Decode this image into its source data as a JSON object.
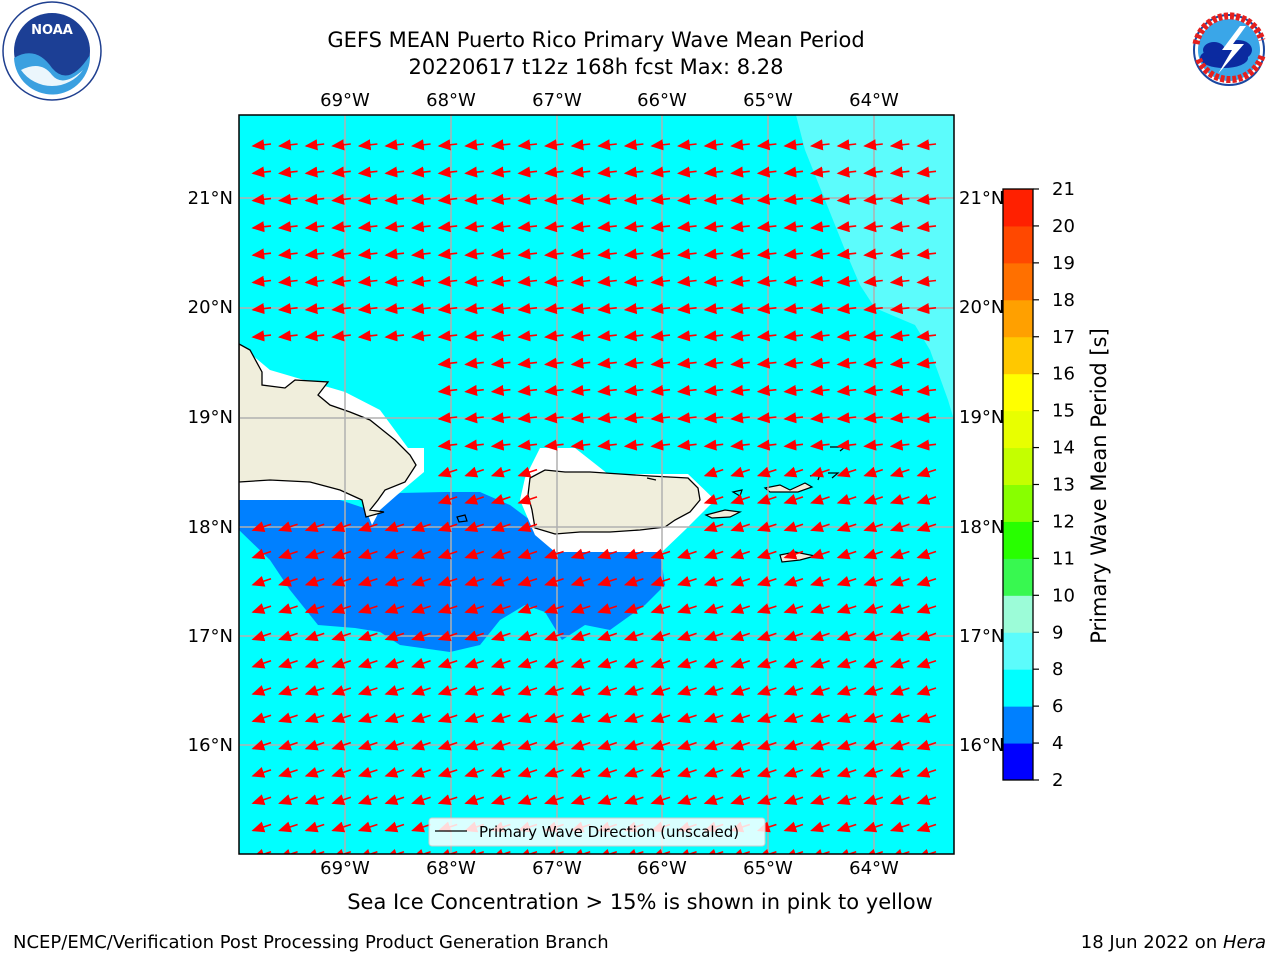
{
  "header": {
    "title_line1": "GEFS MEAN Puerto Rico Primary Wave Mean Period",
    "title_line2": "20220617 t12z 168h fcst   Max: 8.28"
  },
  "logos": {
    "left": {
      "text": "NOAA",
      "ring_text": "NATIONAL OCEANIC AND ATMOSPHERIC ADMINISTRATION · U.S. DEPARTMENT OF COMMERCE"
    },
    "right": {
      "ring_text": "NATIONAL WEATHER SERVICE"
    }
  },
  "map": {
    "lon_labels": [
      "69°W",
      "68°W",
      "67°W",
      "66°W",
      "65°W",
      "64°W"
    ],
    "lat_labels": [
      "21°N",
      "20°N",
      "19°N",
      "18°N",
      "17°N",
      "16°N"
    ],
    "legend_label": "Primary Wave Direction (unscaled)",
    "colors": {
      "ocean": "#00ffff",
      "band_low": "#0080ff",
      "band_high": "#5cfcfc",
      "land": "#f0eedc",
      "arrow": "#ff0000",
      "grid": "#b0b0b0"
    }
  },
  "colorbar": {
    "label": "Primary Wave Mean Period [s]",
    "ticks": [
      "2",
      "4",
      "6",
      "8",
      "9",
      "10",
      "11",
      "12",
      "13",
      "14",
      "15",
      "16",
      "17",
      "18",
      "19",
      "20",
      "21"
    ],
    "colors": [
      "#0000ff",
      "#0080ff",
      "#00ffff",
      "#5cfcfc",
      "#9cfcd8",
      "#38f850",
      "#28ff00",
      "#88ff00",
      "#c4ff00",
      "#e8ff00",
      "#ffff00",
      "#ffc800",
      "#ffa000",
      "#ff7000",
      "#ff4800",
      "#ff2000"
    ]
  },
  "notes": {
    "sea_ice": "Sea Ice Concentration > 15% is shown in pink to yellow",
    "footer_left": "NCEP/EMC/Verification Post Processing Product Generation Branch",
    "footer_date": "18 Jun 2022 on ",
    "footer_machine": "Hera"
  }
}
